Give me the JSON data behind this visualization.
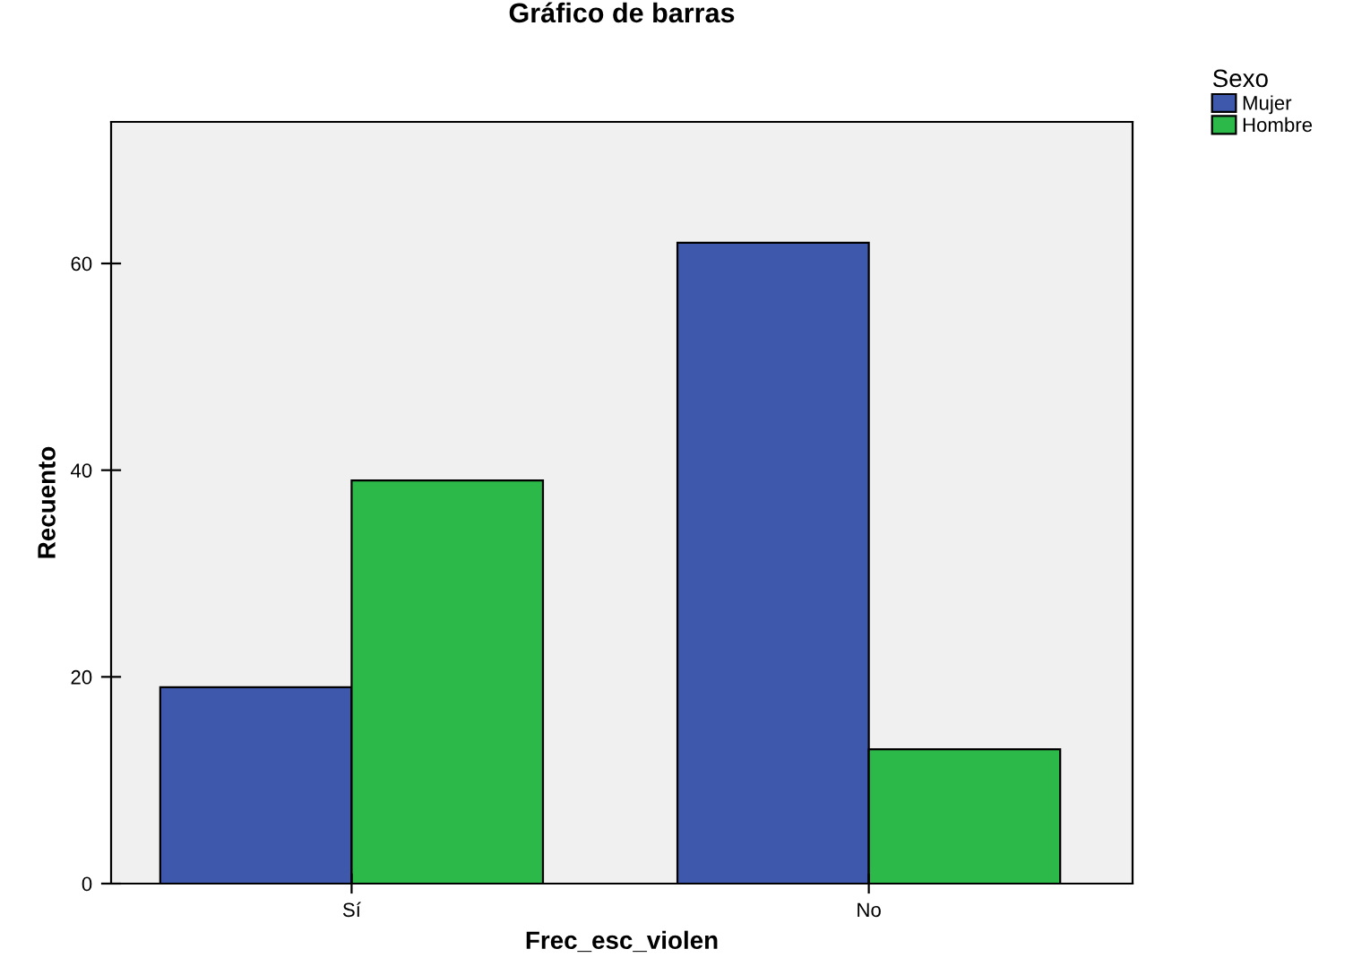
{
  "chart_data": {
    "type": "bar",
    "title": "Gráfico de barras",
    "xlabel": "Frec_esc_violen",
    "ylabel": "Recuento",
    "legend_title": "Sexo",
    "categories": [
      "Sí",
      "No"
    ],
    "series": [
      {
        "name": "Mujer",
        "color": "#3e58ac",
        "values": [
          19,
          62
        ]
      },
      {
        "name": "Hombre",
        "color": "#2db84a",
        "values": [
          39,
          13
        ]
      }
    ],
    "ylim": [
      0,
      73.7
    ],
    "yticks": [
      0,
      20,
      40,
      60
    ],
    "grid": false,
    "legend": "top right"
  }
}
